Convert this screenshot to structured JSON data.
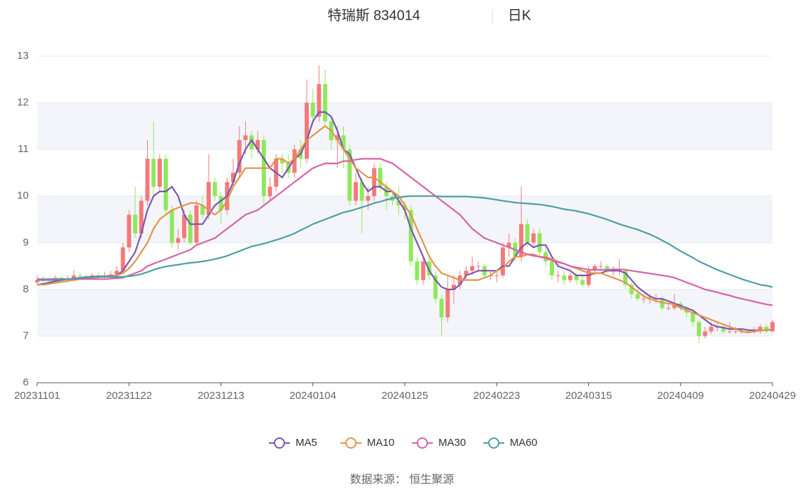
{
  "chart_data": {
    "type": "candlestick",
    "title": "特瑞斯 834014",
    "subtitle": "日K",
    "source": "数据来源： 恒生聚源",
    "categories": [
      "20231101",
      null,
      null,
      null,
      null,
      null,
      null,
      null,
      null,
      null,
      null,
      null,
      null,
      null,
      null,
      "20231122",
      null,
      null,
      null,
      null,
      null,
      null,
      null,
      null,
      null,
      null,
      null,
      null,
      null,
      null,
      "20231213",
      null,
      null,
      null,
      null,
      null,
      null,
      null,
      null,
      null,
      null,
      null,
      null,
      null,
      null,
      "20240104",
      null,
      null,
      null,
      null,
      null,
      null,
      null,
      null,
      null,
      null,
      null,
      null,
      null,
      null,
      "20240125",
      null,
      null,
      null,
      null,
      null,
      null,
      null,
      null,
      null,
      null,
      null,
      null,
      null,
      null,
      "20240223",
      null,
      null,
      null,
      null,
      null,
      null,
      null,
      null,
      null,
      null,
      null,
      null,
      null,
      null,
      "20240315",
      null,
      null,
      null,
      null,
      null,
      null,
      null,
      null,
      null,
      null,
      null,
      null,
      null,
      null,
      "20240409",
      null,
      null,
      null,
      null,
      null,
      null,
      null,
      null,
      null,
      null,
      null,
      null,
      null,
      null,
      "20240429"
    ],
    "candle_fields": [
      "open",
      "close",
      "low",
      "high"
    ],
    "candles": [
      [
        8.15,
        8.2,
        8.1,
        8.3
      ],
      [
        8.2,
        8.22,
        8.15,
        8.28
      ],
      [
        8.22,
        8.2,
        8.15,
        8.26
      ],
      [
        8.2,
        8.25,
        8.15,
        8.3
      ],
      [
        8.25,
        8.22,
        8.18,
        8.28
      ],
      [
        8.22,
        8.24,
        8.18,
        8.3
      ],
      [
        8.24,
        8.3,
        8.2,
        8.4
      ],
      [
        8.3,
        8.28,
        8.22,
        8.35
      ],
      [
        8.28,
        8.26,
        8.2,
        8.32
      ],
      [
        8.26,
        8.3,
        8.2,
        8.35
      ],
      [
        8.3,
        8.28,
        8.22,
        8.36
      ],
      [
        8.28,
        8.3,
        8.24,
        8.38
      ],
      [
        8.3,
        8.32,
        8.25,
        8.4
      ],
      [
        8.32,
        8.4,
        8.3,
        8.5
      ],
      [
        8.4,
        8.9,
        8.35,
        9.0
      ],
      [
        8.9,
        9.6,
        8.8,
        9.7
      ],
      [
        9.6,
        9.2,
        9.1,
        10.2
      ],
      [
        9.2,
        9.9,
        9.1,
        10.0
      ],
      [
        9.9,
        10.8,
        9.8,
        11.2
      ],
      [
        10.8,
        10.2,
        10.0,
        11.6
      ],
      [
        10.2,
        10.8,
        10.1,
        10.9
      ],
      [
        10.8,
        9.7,
        9.6,
        10.9
      ],
      [
        9.7,
        9.0,
        8.9,
        9.8
      ],
      [
        9.0,
        9.1,
        8.85,
        9.3
      ],
      [
        9.1,
        9.6,
        9.0,
        9.7
      ],
      [
        9.6,
        9.0,
        8.95,
        9.7
      ],
      [
        9.0,
        9.8,
        8.95,
        9.9
      ],
      [
        9.8,
        9.6,
        9.5,
        10.0
      ],
      [
        9.6,
        10.3,
        9.5,
        10.9
      ],
      [
        10.3,
        10.0,
        9.9,
        10.4
      ],
      [
        10.0,
        9.7,
        9.4,
        10.1
      ],
      [
        9.7,
        10.3,
        9.6,
        10.4
      ],
      [
        10.3,
        10.5,
        10.2,
        10.8
      ],
      [
        10.5,
        11.2,
        10.4,
        11.5
      ],
      [
        11.2,
        11.3,
        10.9,
        11.6
      ],
      [
        11.3,
        11.0,
        10.8,
        11.4
      ],
      [
        11.0,
        11.2,
        10.9,
        11.4
      ],
      [
        11.2,
        10.0,
        9.8,
        11.3
      ],
      [
        10.0,
        10.2,
        9.9,
        10.4
      ],
      [
        10.2,
        10.8,
        10.1,
        10.9
      ],
      [
        10.8,
        10.7,
        10.5,
        10.9
      ],
      [
        10.7,
        10.5,
        10.4,
        10.9
      ],
      [
        10.5,
        11.0,
        10.4,
        11.1
      ],
      [
        11.0,
        10.8,
        10.6,
        11.2
      ],
      [
        10.8,
        12.0,
        10.7,
        12.5
      ],
      [
        12.0,
        11.7,
        11.6,
        12.3
      ],
      [
        11.7,
        12.4,
        11.6,
        12.8
      ],
      [
        12.4,
        11.6,
        11.5,
        12.7
      ],
      [
        11.6,
        11.2,
        11.0,
        11.7
      ],
      [
        11.2,
        11.3,
        10.6,
        11.5
      ],
      [
        11.3,
        11.0,
        10.6,
        11.5
      ],
      [
        11.0,
        9.9,
        9.8,
        11.1
      ],
      [
        9.9,
        10.3,
        9.8,
        10.5
      ],
      [
        10.3,
        9.9,
        9.2,
        10.4
      ],
      [
        9.9,
        10.0,
        9.7,
        10.2
      ],
      [
        10.0,
        10.6,
        9.9,
        10.7
      ],
      [
        10.6,
        10.2,
        10.1,
        10.7
      ],
      [
        10.2,
        10.0,
        9.7,
        10.3
      ],
      [
        10.0,
        9.9,
        9.8,
        10.1
      ],
      [
        9.9,
        9.8,
        9.6,
        10.2
      ],
      [
        9.8,
        9.7,
        9.5,
        9.9
      ],
      [
        9.7,
        8.6,
        8.5,
        9.8
      ],
      [
        8.6,
        8.2,
        8.1,
        8.7
      ],
      [
        8.2,
        8.6,
        8.1,
        8.7
      ],
      [
        8.6,
        8.3,
        8.2,
        8.7
      ],
      [
        8.3,
        7.8,
        7.7,
        8.4
      ],
      [
        7.8,
        7.4,
        7.0,
        7.9
      ],
      [
        7.4,
        8.0,
        7.3,
        8.3
      ],
      [
        8.0,
        8.1,
        7.7,
        8.3
      ],
      [
        8.1,
        8.3,
        8.0,
        8.4
      ],
      [
        8.3,
        8.4,
        8.2,
        8.5
      ],
      [
        8.4,
        8.5,
        8.3,
        8.7
      ],
      [
        8.5,
        8.5,
        8.4,
        8.6
      ],
      [
        8.5,
        8.3,
        8.25,
        8.55
      ],
      [
        8.3,
        8.3,
        8.2,
        8.4
      ],
      [
        8.3,
        8.3,
        8.15,
        8.4
      ],
      [
        8.3,
        8.9,
        8.25,
        9.0
      ],
      [
        8.9,
        9.0,
        8.7,
        9.2
      ],
      [
        9.0,
        8.7,
        8.6,
        9.1
      ],
      [
        8.7,
        9.4,
        8.6,
        10.2
      ],
      [
        9.4,
        9.0,
        8.9,
        9.5
      ],
      [
        9.0,
        9.2,
        8.9,
        9.3
      ],
      [
        9.2,
        8.8,
        8.7,
        9.3
      ],
      [
        8.8,
        8.6,
        8.5,
        8.9
      ],
      [
        8.6,
        8.3,
        8.2,
        8.7
      ],
      [
        8.3,
        8.3,
        8.15,
        8.4
      ],
      [
        8.3,
        8.2,
        8.1,
        8.4
      ],
      [
        8.2,
        8.3,
        8.15,
        8.35
      ],
      [
        8.3,
        8.2,
        8.1,
        8.35
      ],
      [
        8.2,
        8.1,
        8.05,
        8.3
      ],
      [
        8.1,
        8.4,
        8.05,
        8.5
      ],
      [
        8.4,
        8.5,
        8.3,
        8.55
      ],
      [
        8.5,
        8.5,
        8.4,
        8.6
      ],
      [
        8.5,
        8.4,
        8.35,
        8.55
      ],
      [
        8.4,
        8.4,
        8.3,
        8.5
      ],
      [
        8.4,
        8.4,
        8.3,
        8.65
      ],
      [
        8.4,
        8.1,
        8.0,
        8.45
      ],
      [
        8.1,
        7.9,
        7.8,
        8.15
      ],
      [
        7.9,
        7.8,
        7.75,
        8.0
      ],
      [
        7.8,
        7.8,
        7.7,
        7.9
      ],
      [
        7.8,
        7.8,
        7.7,
        7.9
      ],
      [
        7.8,
        7.8,
        7.7,
        7.9
      ],
      [
        7.8,
        7.6,
        7.55,
        7.85
      ],
      [
        7.6,
        7.6,
        7.55,
        7.7
      ],
      [
        7.6,
        7.7,
        7.55,
        7.9
      ],
      [
        7.7,
        7.6,
        7.55,
        7.75
      ],
      [
        7.6,
        7.5,
        7.4,
        7.65
      ],
      [
        7.5,
        7.3,
        7.2,
        7.55
      ],
      [
        7.3,
        7.0,
        6.85,
        7.35
      ],
      [
        7.0,
        7.1,
        6.95,
        7.2
      ],
      [
        7.1,
        7.2,
        7.05,
        7.3
      ],
      [
        7.2,
        7.2,
        7.1,
        7.3
      ],
      [
        7.2,
        7.1,
        7.05,
        7.25
      ],
      [
        7.1,
        7.1,
        7.05,
        7.3
      ],
      [
        7.1,
        7.1,
        7.05,
        7.2
      ],
      [
        7.1,
        7.1,
        7.05,
        7.15
      ],
      [
        7.1,
        7.1,
        7.05,
        7.15
      ],
      [
        7.1,
        7.1,
        7.05,
        7.2
      ],
      [
        7.1,
        7.2,
        7.05,
        7.25
      ],
      [
        7.2,
        7.1,
        7.05,
        7.25
      ],
      [
        7.1,
        7.3,
        7.1,
        7.35
      ]
    ],
    "up_color": "#f47a7a",
    "down_color": "#8fe85c",
    "series": [
      {
        "name": "MA5",
        "color": "#7b56b0",
        "values": [
          8.1,
          8.12,
          8.15,
          8.18,
          8.2,
          8.22,
          8.23,
          8.25,
          8.26,
          8.27,
          8.28,
          8.28,
          8.29,
          8.3,
          8.4,
          8.6,
          8.8,
          9.2,
          9.7,
          10.0,
          10.1,
          10.1,
          10.2,
          10.0,
          9.6,
          9.4,
          9.4,
          9.4,
          9.6,
          9.8,
          9.9,
          10.0,
          10.3,
          10.7,
          11.0,
          11.2,
          11.0,
          10.8,
          10.6,
          10.5,
          10.4,
          10.6,
          10.8,
          10.9,
          11.2,
          11.6,
          11.8,
          11.8,
          11.7,
          11.4,
          11.0,
          10.9,
          10.6,
          10.3,
          10.1,
          10.2,
          10.2,
          10.1,
          10.1,
          9.9,
          9.7,
          9.3,
          9.0,
          8.7,
          8.4,
          8.2,
          8.05,
          8.0,
          8.0,
          8.1,
          8.3,
          8.35,
          8.4,
          8.4,
          8.4,
          8.4,
          8.5,
          8.5,
          8.7,
          8.9,
          9.0,
          8.9,
          8.95,
          8.95,
          8.7,
          8.5,
          8.45,
          8.4,
          8.3,
          8.3,
          8.3,
          8.35,
          8.35,
          8.4,
          8.4,
          8.4,
          8.35,
          8.2,
          8.05,
          7.95,
          7.85,
          7.8,
          7.8,
          7.75,
          7.7,
          7.65,
          7.6,
          7.55,
          7.45,
          7.35,
          7.25,
          7.2,
          7.18,
          7.15,
          7.15,
          7.15,
          7.13,
          7.12,
          7.12,
          7.13,
          7.14
        ]
      },
      {
        "name": "MA10",
        "color": "#e3944a",
        "values": [
          8.1,
          8.1,
          8.12,
          8.14,
          8.16,
          8.18,
          8.2,
          8.22,
          8.24,
          8.25,
          8.26,
          8.27,
          8.28,
          8.3,
          8.35,
          8.45,
          8.6,
          8.8,
          9.0,
          9.3,
          9.5,
          9.6,
          9.7,
          9.75,
          9.8,
          9.85,
          9.85,
          9.8,
          9.7,
          9.6,
          9.7,
          9.9,
          10.2,
          10.4,
          10.6,
          10.6,
          10.6,
          10.6,
          10.6,
          10.8,
          10.8,
          10.7,
          10.8,
          11.0,
          11.2,
          11.3,
          11.4,
          11.5,
          11.4,
          11.2,
          11.0,
          10.8,
          10.6,
          10.5,
          10.4,
          10.4,
          10.3,
          10.2,
          10.1,
          10.0,
          9.8,
          9.6,
          9.3,
          9.0,
          8.7,
          8.5,
          8.35,
          8.3,
          8.25,
          8.2,
          8.2,
          8.2,
          8.2,
          8.25,
          8.3,
          8.4,
          8.45,
          8.6,
          8.7,
          8.7,
          8.75,
          8.75,
          8.7,
          8.7,
          8.65,
          8.6,
          8.55,
          8.5,
          8.45,
          8.4,
          8.35,
          8.35,
          8.35,
          8.3,
          8.25,
          8.2,
          8.15,
          8.05,
          7.95,
          7.85,
          7.8,
          7.75,
          7.72,
          7.7,
          7.68,
          7.6,
          7.55,
          7.5,
          7.45,
          7.4,
          7.35,
          7.3,
          7.25,
          7.2,
          7.15,
          7.1,
          7.08,
          7.1,
          7.12,
          7.13,
          7.15
        ]
      },
      {
        "name": "MA30",
        "color": "#d663a6",
        "values": [
          8.22,
          8.22,
          8.22,
          8.22,
          8.22,
          8.22,
          8.22,
          8.22,
          8.22,
          8.22,
          8.22,
          8.22,
          8.23,
          8.24,
          8.25,
          8.3,
          8.35,
          8.4,
          8.5,
          8.55,
          8.6,
          8.65,
          8.7,
          8.75,
          8.8,
          8.85,
          8.95,
          9.0,
          9.05,
          9.1,
          9.2,
          9.3,
          9.4,
          9.5,
          9.6,
          9.65,
          9.7,
          9.8,
          9.9,
          10.0,
          10.1,
          10.2,
          10.3,
          10.4,
          10.5,
          10.6,
          10.65,
          10.7,
          10.7,
          10.7,
          10.75,
          10.75,
          10.78,
          10.8,
          10.8,
          10.8,
          10.8,
          10.75,
          10.7,
          10.6,
          10.5,
          10.4,
          10.3,
          10.2,
          10.1,
          10.0,
          9.9,
          9.8,
          9.7,
          9.6,
          9.45,
          9.3,
          9.2,
          9.1,
          9.05,
          9.0,
          8.95,
          8.9,
          8.85,
          8.8,
          8.75,
          8.72,
          8.7,
          8.67,
          8.62,
          8.58,
          8.55,
          8.5,
          8.47,
          8.45,
          8.42,
          8.42,
          8.42,
          8.42,
          8.43,
          8.43,
          8.42,
          8.4,
          8.38,
          8.36,
          8.34,
          8.32,
          8.3,
          8.28,
          8.25,
          8.2,
          8.15,
          8.1,
          8.05,
          8.0,
          7.97,
          7.94,
          7.9,
          7.87,
          7.83,
          7.8,
          7.77,
          7.74,
          7.71,
          7.68,
          7.66
        ]
      },
      {
        "name": "MA60",
        "color": "#4d9fa3",
        "values": [
          8.2,
          8.2,
          8.2,
          8.21,
          8.22,
          8.22,
          8.23,
          8.24,
          8.25,
          8.26,
          8.27,
          8.27,
          8.27,
          8.27,
          8.27,
          8.28,
          8.3,
          8.33,
          8.37,
          8.42,
          8.46,
          8.49,
          8.51,
          8.53,
          8.55,
          8.57,
          8.58,
          8.6,
          8.62,
          8.65,
          8.68,
          8.72,
          8.77,
          8.82,
          8.87,
          8.92,
          8.95,
          8.98,
          9.02,
          9.06,
          9.1,
          9.15,
          9.2,
          9.27,
          9.33,
          9.4,
          9.45,
          9.5,
          9.55,
          9.6,
          9.65,
          9.68,
          9.72,
          9.76,
          9.8,
          9.85,
          9.88,
          9.92,
          9.95,
          9.97,
          9.99,
          10.0,
          10.0,
          10.0,
          10.0,
          10.0,
          9.99,
          9.99,
          9.99,
          9.99,
          9.99,
          9.98,
          9.97,
          9.96,
          9.94,
          9.92,
          9.9,
          9.88,
          9.86,
          9.85,
          9.84,
          9.83,
          9.82,
          9.8,
          9.78,
          9.75,
          9.72,
          9.7,
          9.68,
          9.65,
          9.62,
          9.58,
          9.54,
          9.5,
          9.45,
          9.4,
          9.36,
          9.32,
          9.28,
          9.23,
          9.18,
          9.12,
          9.05,
          8.98,
          8.9,
          8.82,
          8.75,
          8.68,
          8.6,
          8.54,
          8.48,
          8.42,
          8.37,
          8.32,
          8.27,
          8.22,
          8.18,
          8.14,
          8.1,
          8.08,
          8.05
        ]
      }
    ],
    "ylim": [
      6,
      13
    ],
    "yticks": [
      6,
      7,
      8,
      9,
      10,
      11,
      12,
      13
    ],
    "grid": true,
    "legend": "bottom"
  }
}
